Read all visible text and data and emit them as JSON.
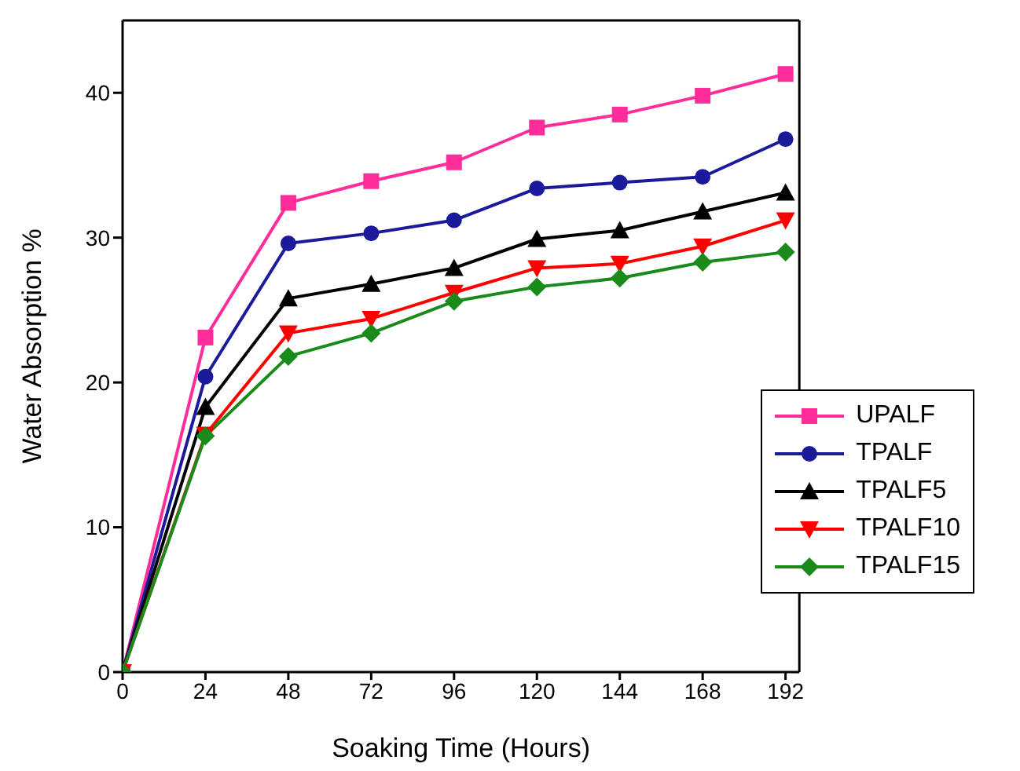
{
  "chart_data": {
    "type": "line",
    "xlabel": "Soaking Time (Hours)",
    "ylabel": "Water Absorption %",
    "x": [
      0,
      24,
      48,
      72,
      96,
      120,
      144,
      168,
      192
    ],
    "xlim": [
      0,
      196
    ],
    "xticks": [
      0,
      24,
      48,
      72,
      96,
      120,
      144,
      168,
      192
    ],
    "ylim": [
      0,
      45
    ],
    "yticks": [
      0,
      10,
      20,
      30,
      40
    ],
    "grid": false,
    "legend": "right",
    "line_style": "solid",
    "series": [
      {
        "name": "UPALF",
        "color": "#ff2d9a",
        "marker": "square",
        "values": [
          0,
          23.1,
          32.4,
          33.9,
          35.2,
          37.6,
          38.5,
          39.8,
          41.3
        ]
      },
      {
        "name": "TPALF",
        "color": "#1a1a9a",
        "marker": "circle",
        "values": [
          0,
          20.4,
          29.6,
          30.3,
          31.2,
          33.4,
          33.8,
          34.2,
          36.8
        ]
      },
      {
        "name": "TPALF5",
        "color": "#000000",
        "marker": "triangle",
        "values": [
          0,
          18.3,
          25.8,
          26.8,
          27.9,
          29.9,
          30.5,
          31.8,
          33.1
        ]
      },
      {
        "name": "TPALF10",
        "color": "#ff0000",
        "marker": "triangle-down",
        "values": [
          0,
          16.4,
          23.4,
          24.4,
          26.2,
          27.9,
          28.2,
          29.4,
          31.2
        ]
      },
      {
        "name": "TPALF15",
        "color": "#1a8a1a",
        "marker": "diamond",
        "values": [
          0,
          16.3,
          21.8,
          23.4,
          25.6,
          26.6,
          27.2,
          28.3,
          29.0
        ]
      }
    ]
  }
}
